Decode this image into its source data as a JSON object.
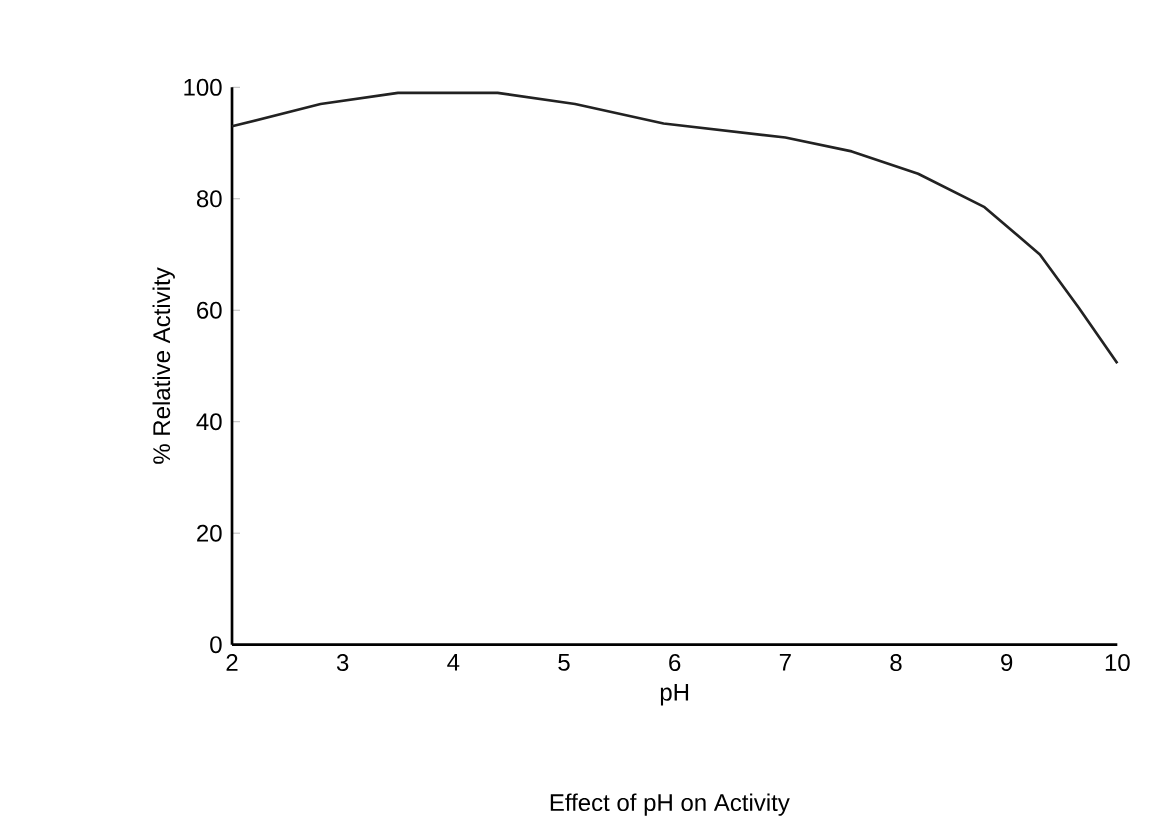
{
  "chart_data": {
    "type": "line",
    "title": "Effect of pH on Activity",
    "xlabel": "pH",
    "ylabel": "% Relative Activity",
    "x": [
      2,
      2.8,
      3.5,
      4.4,
      5.1,
      5.9,
      7,
      7.6,
      8.2,
      8.8,
      9.3,
      9.65,
      10
    ],
    "values": [
      93,
      97,
      99,
      99,
      97,
      93.5,
      91,
      88.5,
      84.5,
      78.5,
      70,
      60.5,
      50.5
    ],
    "color": "#222222",
    "xlim": [
      2,
      10
    ],
    "ylim": [
      0,
      100
    ],
    "xticks": [
      2,
      3,
      4,
      5,
      6,
      7,
      8,
      9,
      10
    ],
    "yticks": [
      0,
      20,
      40,
      60,
      80,
      100
    ],
    "grid": false,
    "marker": "none",
    "line_style": "solid"
  }
}
